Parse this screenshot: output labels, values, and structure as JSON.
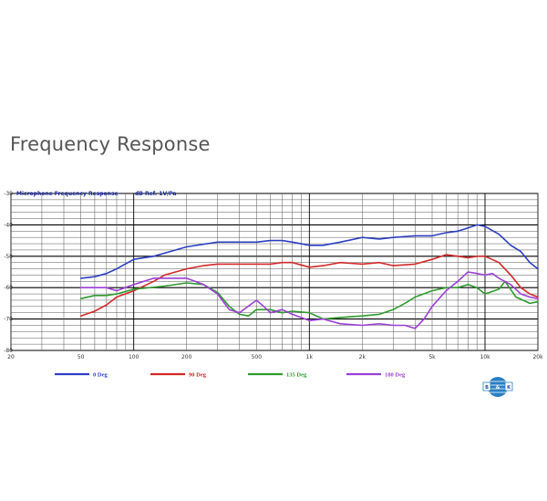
{
  "page": {
    "title": "Frequency Response"
  },
  "chart_data": {
    "type": "line",
    "title": "Microphone Frequency Response",
    "reference": "dB Ref. 1V/Pa",
    "x_scale": "log",
    "xlim": [
      20,
      20000
    ],
    "ylim": [
      -80,
      -30
    ],
    "grid": true,
    "legend_position": "bottom",
    "x_ticks": [
      {
        "v": 20,
        "label": "20"
      },
      {
        "v": 50,
        "label": "50"
      },
      {
        "v": 100,
        "label": "100"
      },
      {
        "v": 200,
        "label": "200"
      },
      {
        "v": 500,
        "label": "500"
      },
      {
        "v": 1000,
        "label": "1k"
      },
      {
        "v": 2000,
        "label": "2k"
      },
      {
        "v": 5000,
        "label": "5k"
      },
      {
        "v": 10000,
        "label": "10k"
      },
      {
        "v": 20000,
        "label": "20k"
      }
    ],
    "y_ticks": [
      {
        "v": -30,
        "label": "-30"
      },
      {
        "v": -40,
        "label": "-40"
      },
      {
        "v": -50,
        "label": "-50"
      },
      {
        "v": -60,
        "label": "-60"
      },
      {
        "v": -70,
        "label": "-70"
      },
      {
        "v": -80,
        "label": "-80"
      }
    ],
    "series": [
      {
        "name": "0 Deg",
        "color": "#2b3fc0",
        "points": [
          [
            50,
            -57
          ],
          [
            60,
            -56.5
          ],
          [
            70,
            -55.5
          ],
          [
            80,
            -54
          ],
          [
            100,
            -51
          ],
          [
            130,
            -50
          ],
          [
            150,
            -49
          ],
          [
            200,
            -47
          ],
          [
            300,
            -45.5
          ],
          [
            400,
            -45.5
          ],
          [
            500,
            -45.5
          ],
          [
            600,
            -45
          ],
          [
            700,
            -45
          ],
          [
            800,
            -45.5
          ],
          [
            1000,
            -46.5
          ],
          [
            1200,
            -46.5
          ],
          [
            1500,
            -45.5
          ],
          [
            2000,
            -44
          ],
          [
            2500,
            -44.5
          ],
          [
            3000,
            -44
          ],
          [
            4000,
            -43.5
          ],
          [
            5000,
            -43.5
          ],
          [
            6000,
            -42.5
          ],
          [
            7000,
            -42
          ],
          [
            8000,
            -41
          ],
          [
            9000,
            -40
          ],
          [
            10000,
            -40.5
          ],
          [
            12000,
            -43
          ],
          [
            14000,
            -46.5
          ],
          [
            16000,
            -48.5
          ],
          [
            18000,
            -52
          ],
          [
            20000,
            -54
          ]
        ]
      },
      {
        "name": "90 Deg",
        "color": "#d22828",
        "points": [
          [
            50,
            -69
          ],
          [
            60,
            -67.5
          ],
          [
            70,
            -65.5
          ],
          [
            80,
            -63
          ],
          [
            100,
            -61
          ],
          [
            130,
            -58
          ],
          [
            150,
            -56
          ],
          [
            200,
            -54
          ],
          [
            250,
            -53
          ],
          [
            300,
            -52.5
          ],
          [
            400,
            -52.5
          ],
          [
            500,
            -52.5
          ],
          [
            600,
            -52.5
          ],
          [
            700,
            -52
          ],
          [
            800,
            -52
          ],
          [
            1000,
            -53.5
          ],
          [
            1200,
            -53
          ],
          [
            1500,
            -52
          ],
          [
            2000,
            -52.5
          ],
          [
            2500,
            -52
          ],
          [
            3000,
            -53
          ],
          [
            4000,
            -52.5
          ],
          [
            5000,
            -51
          ],
          [
            6000,
            -49.5
          ],
          [
            7000,
            -50
          ],
          [
            8000,
            -50.5
          ],
          [
            9000,
            -50
          ],
          [
            10000,
            -50
          ],
          [
            12000,
            -52
          ],
          [
            14000,
            -56
          ],
          [
            16000,
            -60
          ],
          [
            18000,
            -62
          ],
          [
            20000,
            -63
          ]
        ]
      },
      {
        "name": "135 Deg",
        "color": "#2e9a2e",
        "points": [
          [
            50,
            -63.5
          ],
          [
            60,
            -62.5
          ],
          [
            70,
            -62.5
          ],
          [
            80,
            -62
          ],
          [
            100,
            -60.5
          ],
          [
            150,
            -59.5
          ],
          [
            200,
            -58.5
          ],
          [
            250,
            -59
          ],
          [
            300,
            -61.5
          ],
          [
            350,
            -66
          ],
          [
            400,
            -68.5
          ],
          [
            450,
            -69
          ],
          [
            500,
            -67
          ],
          [
            600,
            -67
          ],
          [
            700,
            -68
          ],
          [
            800,
            -67.5
          ],
          [
            1000,
            -68
          ],
          [
            1200,
            -70
          ],
          [
            1500,
            -69.5
          ],
          [
            2000,
            -69
          ],
          [
            2500,
            -68.5
          ],
          [
            3000,
            -67
          ],
          [
            3500,
            -65
          ],
          [
            4000,
            -63
          ],
          [
            5000,
            -61
          ],
          [
            6000,
            -60
          ],
          [
            7000,
            -60
          ],
          [
            8000,
            -59
          ],
          [
            9000,
            -60
          ],
          [
            10000,
            -62
          ],
          [
            12000,
            -60.5
          ],
          [
            13000,
            -58
          ],
          [
            15000,
            -63
          ],
          [
            18000,
            -65
          ],
          [
            20000,
            -64.5
          ]
        ]
      },
      {
        "name": "180 Deg",
        "color": "#9b3fd6",
        "points": [
          [
            50,
            -60
          ],
          [
            60,
            -60
          ],
          [
            70,
            -60
          ],
          [
            80,
            -61
          ],
          [
            100,
            -59
          ],
          [
            130,
            -57
          ],
          [
            150,
            -57
          ],
          [
            200,
            -57
          ],
          [
            250,
            -59
          ],
          [
            300,
            -62
          ],
          [
            350,
            -67
          ],
          [
            400,
            -68
          ],
          [
            500,
            -64
          ],
          [
            550,
            -66
          ],
          [
            600,
            -68
          ],
          [
            700,
            -67
          ],
          [
            800,
            -68.5
          ],
          [
            1000,
            -70.5
          ],
          [
            1200,
            -70
          ],
          [
            1500,
            -71.5
          ],
          [
            2000,
            -72
          ],
          [
            2500,
            -71.5
          ],
          [
            3000,
            -72
          ],
          [
            3500,
            -72
          ],
          [
            4000,
            -73
          ],
          [
            4500,
            -70
          ],
          [
            5000,
            -66
          ],
          [
            6000,
            -61
          ],
          [
            7000,
            -58
          ],
          [
            8000,
            -55
          ],
          [
            9000,
            -55.5
          ],
          [
            10000,
            -56
          ],
          [
            11000,
            -55.5
          ],
          [
            12000,
            -57
          ],
          [
            14000,
            -59
          ],
          [
            16000,
            -62
          ],
          [
            18000,
            -63
          ],
          [
            20000,
            -63.5
          ]
        ]
      }
    ]
  },
  "logo": {
    "letters": [
      "B",
      "&",
      "K"
    ]
  }
}
